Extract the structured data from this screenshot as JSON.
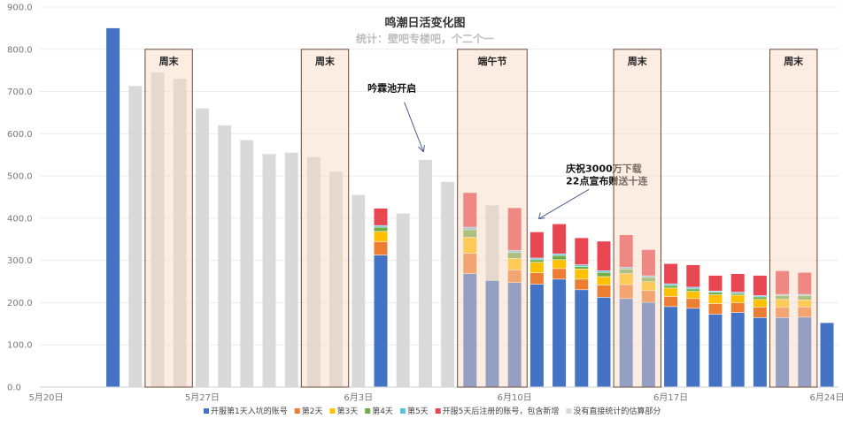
{
  "chart_data": {
    "type": "bar",
    "stacked": true,
    "title": "鸣潮日活变化图",
    "subtitle": "统计：壁吧专楼吧，个二个一",
    "ylim": [
      0,
      900
    ],
    "yticks": [
      "0.0",
      "100.0",
      "200.0",
      "300.0",
      "400.0",
      "500.0",
      "600.0",
      "700.0",
      "800.0",
      "900.0"
    ],
    "x_tick_labels": [
      {
        "day": 0,
        "label": "5月20日"
      },
      {
        "day": 7,
        "label": "5月27日"
      },
      {
        "day": 14,
        "label": "6月3日"
      },
      {
        "day": 21,
        "label": "6月10日"
      },
      {
        "day": 28,
        "label": "6月17日"
      },
      {
        "day": 35,
        "label": "6月24日"
      }
    ],
    "categories": [
      "5月23日",
      "5月24日",
      "5月25日",
      "5月26日",
      "5月27日",
      "5月28日",
      "5月29日",
      "5月30日",
      "5月31日",
      "6月1日",
      "6月2日",
      "6月3日",
      "6月4日",
      "6月5日",
      "6月6日",
      "6月7日",
      "6月8日",
      "6月9日",
      "6月10日",
      "6月11日",
      "6月12日",
      "6月13日",
      "6月14日",
      "6月15日",
      "6月16日",
      "6月17日",
      "6月18日",
      "6月19日",
      "6月20日",
      "6月21日",
      "6月22日",
      "6月23日",
      "6月24日",
      "6月25日"
    ],
    "category_day_index": [
      3,
      4,
      5,
      6,
      7,
      8,
      9,
      10,
      11,
      12,
      13,
      14,
      15,
      16,
      17,
      18,
      19,
      20,
      21,
      22,
      23,
      24,
      25,
      26,
      27,
      28,
      29,
      30,
      31,
      32,
      33,
      34,
      35,
      36
    ],
    "series": [
      {
        "name": "开服第1天入坑的账号",
        "color": "#4472c4",
        "values": [
          850,
          0,
          0,
          0,
          0,
          0,
          0,
          0,
          0,
          0,
          0,
          0,
          312,
          0,
          0,
          0,
          268,
          252,
          247,
          243,
          255,
          230,
          212,
          209,
          200,
          190,
          186,
          172,
          176,
          164,
          164,
          165,
          152,
          0
        ]
      },
      {
        "name": "第2天",
        "color": "#ed7d31",
        "values": [
          0,
          0,
          0,
          0,
          0,
          0,
          0,
          0,
          0,
          0,
          0,
          0,
          32,
          0,
          0,
          0,
          48,
          0,
          30,
          27,
          25,
          25,
          29,
          33,
          28,
          24,
          23,
          25,
          23,
          25,
          24,
          24,
          0,
          0
        ]
      },
      {
        "name": "第3天",
        "color": "#ffc000",
        "values": [
          0,
          0,
          0,
          0,
          0,
          0,
          0,
          0,
          0,
          0,
          0,
          0,
          24,
          0,
          0,
          0,
          38,
          0,
          27,
          25,
          21,
          24,
          20,
          26,
          21,
          20,
          17,
          21,
          18,
          18,
          19,
          17,
          0,
          0
        ]
      },
      {
        "name": "第4天",
        "color": "#70ad47",
        "values": [
          0,
          0,
          0,
          0,
          0,
          0,
          0,
          0,
          0,
          0,
          0,
          0,
          10,
          0,
          0,
          0,
          18,
          0,
          14,
          6,
          10,
          6,
          10,
          11,
          10,
          6,
          6,
          6,
          4,
          6,
          9,
          10,
          0,
          0
        ]
      },
      {
        "name": "第5天",
        "color": "#5bc0de",
        "values": [
          0,
          0,
          0,
          0,
          0,
          0,
          0,
          0,
          0,
          0,
          0,
          0,
          4,
          0,
          0,
          0,
          6,
          0,
          5,
          4,
          4,
          4,
          4,
          4,
          4,
          4,
          4,
          3,
          3,
          3,
          3,
          3,
          0,
          0
        ]
      },
      {
        "name": "开服5天后注册的账号，包含新增",
        "color": "#e84651",
        "values": [
          0,
          0,
          0,
          0,
          0,
          0,
          0,
          0,
          0,
          0,
          0,
          0,
          41,
          0,
          0,
          0,
          82,
          0,
          101,
          62,
          71,
          64,
          70,
          77,
          62,
          48,
          53,
          37,
          44,
          48,
          56,
          52,
          0,
          0
        ]
      },
      {
        "name": "没有直接统计的估算部分",
        "color": "#d9d9d9",
        "values": [
          0,
          713,
          745,
          730,
          660,
          620,
          585,
          552,
          555,
          545,
          510,
          455,
          0,
          411,
          538,
          486,
          0,
          178,
          0,
          0,
          0,
          0,
          0,
          0,
          0,
          0,
          0,
          0,
          0,
          0,
          0,
          0,
          0,
          0
        ]
      }
    ],
    "highlight_regions": [
      {
        "label": "周末",
        "from_day": 5,
        "to_day": 6
      },
      {
        "label": "周末",
        "from_day": 12,
        "to_day": 13
      },
      {
        "label": "端午节",
        "from_day": 19,
        "to_day": 21
      },
      {
        "label": "周末",
        "from_day": 26,
        "to_day": 27
      },
      {
        "label": "周末",
        "from_day": 33,
        "to_day": 34
      }
    ],
    "annotations": [
      {
        "lines": [
          "吟霖池开启"
        ],
        "target_day": 17,
        "target_value": 540
      },
      {
        "lines": [
          "庆祝3000万下载",
          "22点宣布赠送十连"
        ],
        "target_day": 22,
        "target_value": 390
      }
    ],
    "legend_position": "bottom",
    "grid": true
  }
}
